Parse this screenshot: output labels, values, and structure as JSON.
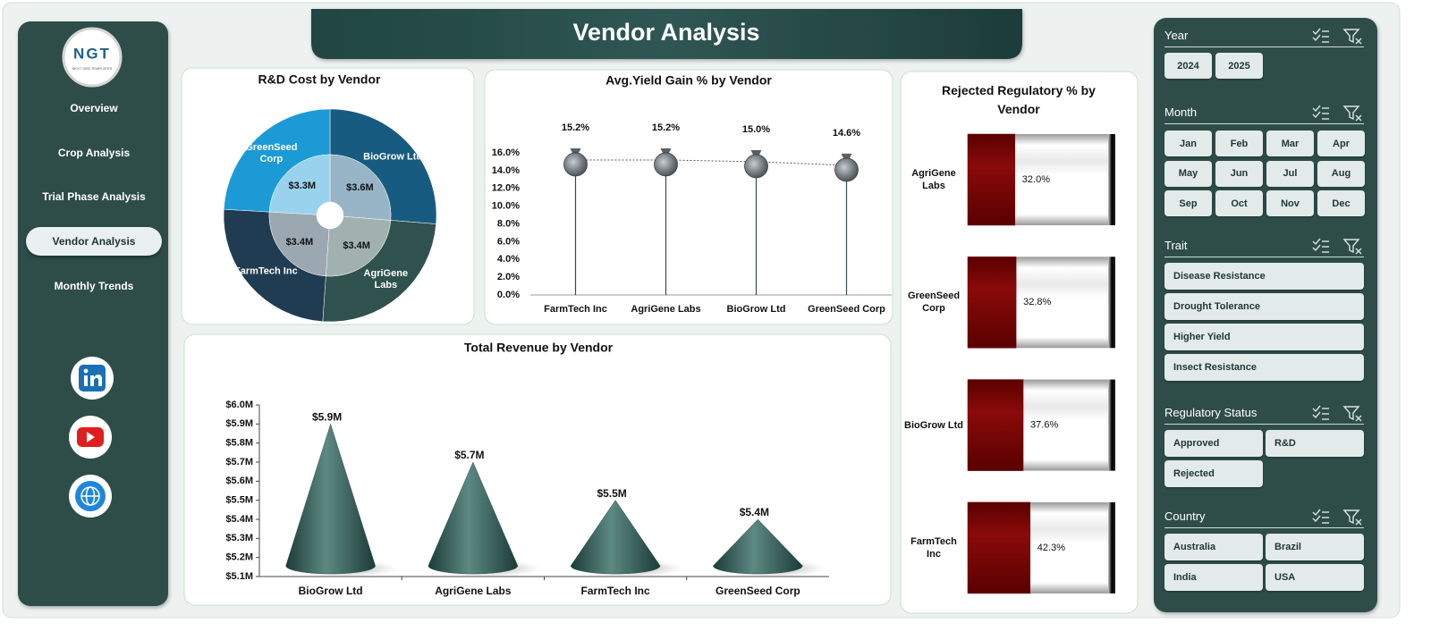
{
  "header": {
    "title": "Vendor Analysis"
  },
  "logo": {
    "name": "NGT",
    "tagline": "NEXT GEN TEMPLATES"
  },
  "nav": [
    "Overview",
    "Crop Analysis",
    "Trial Phase Analysis",
    "Vendor Analysis",
    "Monthly Trends"
  ],
  "chart_data": [
    {
      "type": "pie",
      "title": "R&D Cost by Vendor",
      "categories": [
        "BioGrow Ltd",
        "AgriGene Labs",
        "FarmTech Inc",
        "GreenSeed Corp"
      ],
      "values": [
        3.6,
        3.4,
        3.4,
        3.3
      ],
      "value_labels": [
        "$3.6M",
        "$3.4M",
        "$3.4M",
        "$3.3M"
      ],
      "colors": [
        "#185b80",
        "#2f524e",
        "#203c52",
        "#1c9ad6"
      ]
    },
    {
      "type": "line",
      "title": "Avg.Yield Gain % by Vendor",
      "categories": [
        "FarmTech Inc",
        "AgriGene Labs",
        "BioGrow Ltd",
        "GreenSeed Corp"
      ],
      "values": [
        15.2,
        15.2,
        15.0,
        14.6
      ],
      "value_labels": [
        "15.2%",
        "15.2%",
        "15.0%",
        "14.6%"
      ],
      "ylim": [
        0,
        16
      ],
      "yticks": [
        {
          "value": 0,
          "label": "0.0%"
        },
        {
          "value": 2,
          "label": "2.0%"
        },
        {
          "value": 4,
          "label": "4.0%"
        },
        {
          "value": 6,
          "label": "6.0%"
        },
        {
          "value": 8,
          "label": "8.0%"
        },
        {
          "value": 10,
          "label": "10.0%"
        },
        {
          "value": 12,
          "label": "12.0%"
        },
        {
          "value": 14,
          "label": "14.0%"
        },
        {
          "value": 16,
          "label": "16.0%"
        }
      ],
      "color": "#2f4f4c"
    },
    {
      "type": "bar",
      "orientation": "horizontal",
      "title": "Rejected Regulatory % by Vendor",
      "categories": [
        "AgriGene Labs",
        "GreenSeed Corp",
        "BioGrow Ltd",
        "FarmTech Inc"
      ],
      "values": [
        32.0,
        32.8,
        37.6,
        42.3
      ],
      "value_labels": [
        "32.0%",
        "32.8%",
        "37.6%",
        "42.3%"
      ],
      "xlim": [
        0,
        100
      ],
      "color": "#7b0000"
    },
    {
      "type": "bar",
      "shape": "cone",
      "title": "Total Revenue by Vendor",
      "categories": [
        "BioGrow Ltd",
        "AgriGene Labs",
        "FarmTech Inc",
        "GreenSeed Corp"
      ],
      "values": [
        5.9,
        5.7,
        5.5,
        5.4
      ],
      "value_labels": [
        "$5.9M",
        "$5.7M",
        "$5.5M",
        "$5.4M"
      ],
      "ylim": [
        5.1,
        6.0
      ],
      "yticks": [
        {
          "value": 5.1,
          "label": "$5.1M"
        },
        {
          "value": 5.2,
          "label": "$5.2M"
        },
        {
          "value": 5.3,
          "label": "$5.3M"
        },
        {
          "value": 5.4,
          "label": "$5.4M"
        },
        {
          "value": 5.5,
          "label": "$5.5M"
        },
        {
          "value": 5.6,
          "label": "$5.6M"
        },
        {
          "value": 5.7,
          "label": "$5.7M"
        },
        {
          "value": 5.8,
          "label": "$5.8M"
        },
        {
          "value": 5.9,
          "label": "$5.9M"
        },
        {
          "value": 6.0,
          "label": "$6.0M"
        }
      ],
      "color": "#2f5a55"
    }
  ],
  "slicers": [
    {
      "title": "Year",
      "items": [
        "2024",
        "2025"
      ]
    },
    {
      "title": "Month",
      "items": [
        "Jan",
        "Feb",
        "Mar",
        "Apr",
        "May",
        "Jun",
        "Jul",
        "Aug",
        "Sep",
        "Oct",
        "Nov",
        "Dec"
      ]
    },
    {
      "title": "Trait",
      "items": [
        "Disease Resistance",
        "Drought Tolerance",
        "Higher Yield",
        "Insect Resistance"
      ]
    },
    {
      "title": "Regulatory Status",
      "items": [
        "Approved",
        "R&D",
        "Rejected"
      ]
    },
    {
      "title": "Country",
      "items": [
        "Australia",
        "Brazil",
        "India",
        "USA"
      ]
    }
  ]
}
